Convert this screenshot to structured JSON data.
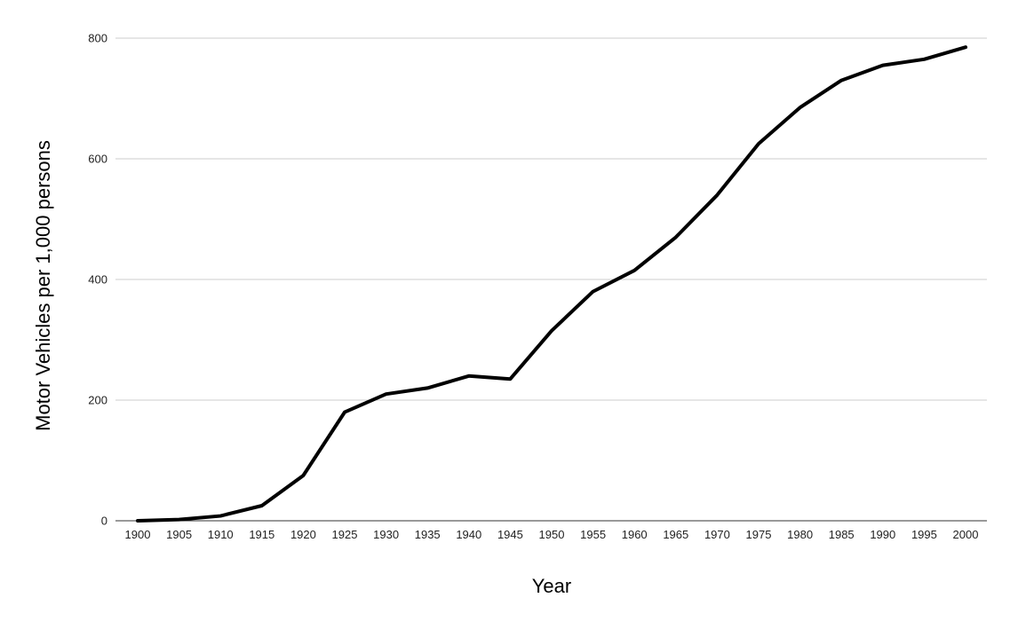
{
  "chart_data": {
    "type": "line",
    "title": "",
    "xlabel": "Year",
    "ylabel": "Motor Vehicles per 1,000 persons",
    "x": [
      "1900",
      "1905",
      "1910",
      "1915",
      "1920",
      "1925",
      "1930",
      "1935",
      "1940",
      "1945",
      "1950",
      "1955",
      "1960",
      "1965",
      "1970",
      "1975",
      "1980",
      "1985",
      "1990",
      "1995",
      "2000"
    ],
    "series": [
      {
        "values": [
          0,
          2,
          8,
          25,
          75,
          180,
          210,
          220,
          240,
          235,
          315,
          380,
          415,
          470,
          540,
          625,
          685,
          730,
          755,
          765,
          785
        ],
        "color": "#000000"
      }
    ],
    "ylim": [
      0,
      800
    ],
    "yticks": [
      0,
      200,
      400,
      600,
      800
    ],
    "grid": true,
    "legend": "none"
  }
}
